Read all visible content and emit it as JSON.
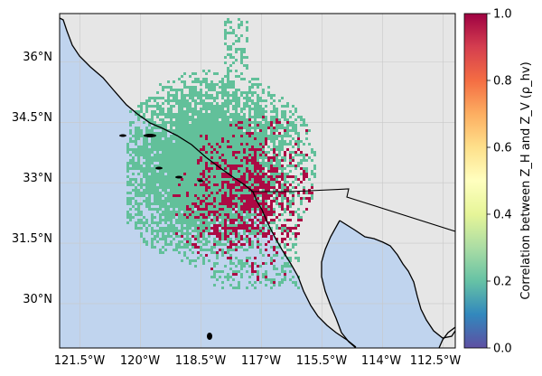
{
  "map": {
    "lat_labels": [
      "36°N",
      "34.5°N",
      "33°N",
      "31.5°N",
      "30°N"
    ],
    "lon_labels": [
      "121.5°W",
      "120°W",
      "118.5°W",
      "117°W",
      "115.5°W",
      "114°W",
      "112.5°W"
    ],
    "extent": {
      "lon_min": -122.0,
      "lon_max": -112.2,
      "lat_min": 28.9,
      "lat_max": 37.2
    },
    "colors": {
      "ocean": "#c0d4ee",
      "land": "#e6e6e6",
      "coast": "#000000",
      "grid": "#c8c8c8",
      "high_corr": "#ac0a44",
      "low_corr": "#62c09a"
    },
    "radar_location": {
      "lon": -117.05,
      "lat": 32.55
    }
  },
  "colorbar": {
    "label": "Correlation between Z_H and Z_V (ρ_hv)",
    "ticks": [
      "0.0",
      "0.2",
      "0.4",
      "0.6",
      "0.8",
      "1.0"
    ],
    "tick_values": [
      0.0,
      0.2,
      0.4,
      0.6,
      0.8,
      1.0
    ],
    "colormap": "Spectral_r",
    "range": [
      0.0,
      1.0
    ]
  }
}
